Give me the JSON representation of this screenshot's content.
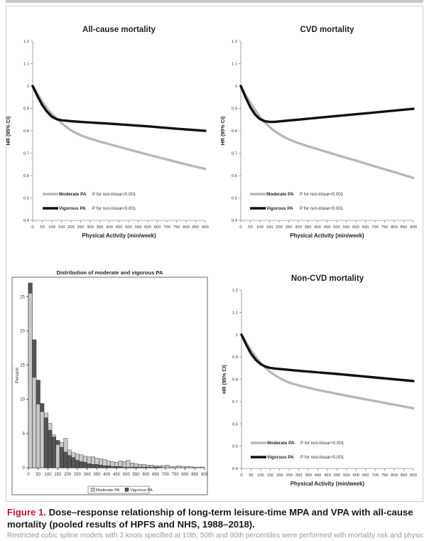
{
  "figure": {
    "caption_label": "Figure 1.",
    "caption_text": " Dose–response relationship of long-term leisure-time MPA and VPA with all-cause mortality (pooled results of HPFS and NHS, 1988–2018).",
    "footnote": "Restricted cubic spline models with 3 knots specified at 10th, 50th and 90th percentiles were performed with mortality risk and physical activity"
  },
  "colors": {
    "moderate": "#b8b8b8",
    "vigorous": "#111111",
    "hist_moderate": "#c9c9c9",
    "hist_vigorous": "#555555"
  },
  "chart_data": [
    {
      "id": "all-cause",
      "type": "line",
      "title": "All-cause mortality",
      "xlabel": "Physical Activity (min/week)",
      "ylabel": "HR (95% CI)",
      "xlim": [
        0,
        900
      ],
      "ylim": [
        0.4,
        1.2
      ],
      "xticks": [
        "0",
        "50",
        "100",
        "150",
        "200",
        "250",
        "300",
        "350",
        "400",
        "450",
        "500",
        "550",
        "600",
        "650",
        "700",
        "750",
        "800",
        "850",
        "900"
      ],
      "yticks": [
        "0.4",
        "0.5",
        "0.6",
        "0.7",
        "0.8",
        "0.9",
        "1",
        "1.1",
        "1.2"
      ],
      "legend": {
        "position": "bottom-left",
        "entries": [
          {
            "series": "Moderate PA",
            "note": "P for non-linear<0.001"
          },
          {
            "series": "Vigorous PA",
            "note": "P for non-linear<0.001"
          }
        ]
      },
      "series": [
        {
          "name": "Moderate PA",
          "x": [
            0,
            25,
            50,
            75,
            100,
            125,
            150,
            175,
            200,
            250,
            300,
            350,
            400,
            500,
            600,
            700,
            800,
            900
          ],
          "y": [
            1.0,
            0.965,
            0.93,
            0.9,
            0.875,
            0.855,
            0.835,
            0.818,
            0.802,
            0.78,
            0.765,
            0.752,
            0.74,
            0.717,
            0.694,
            0.672,
            0.65,
            0.63
          ]
        },
        {
          "name": "Vigorous PA",
          "x": [
            0,
            25,
            50,
            75,
            100,
            125,
            150,
            175,
            200,
            250,
            300,
            400,
            500,
            600,
            700,
            800,
            900
          ],
          "y": [
            1.0,
            0.955,
            0.915,
            0.885,
            0.863,
            0.852,
            0.847,
            0.845,
            0.843,
            0.84,
            0.837,
            0.832,
            0.826,
            0.82,
            0.813,
            0.806,
            0.8
          ]
        }
      ]
    },
    {
      "id": "cvd",
      "type": "line",
      "title": "CVD mortality",
      "xlabel": "Physical Activity (min/week)",
      "ylabel": "HR (95% CI)",
      "xlim": [
        0,
        900
      ],
      "ylim": [
        0.4,
        1.2
      ],
      "xticks": [
        "0",
        "50",
        "100",
        "150",
        "200",
        "250",
        "300",
        "350",
        "400",
        "450",
        "500",
        "550",
        "600",
        "650",
        "700",
        "750",
        "800",
        "850",
        "900"
      ],
      "yticks": [
        "0.4",
        "0.5",
        "0.6",
        "0.7",
        "0.8",
        "0.9",
        "1",
        "1.1",
        "1.2"
      ],
      "legend": {
        "position": "bottom-left",
        "entries": [
          {
            "series": "Moderate PA",
            "note": "P for non-linear<0.001"
          },
          {
            "series": "Vigorous PA",
            "note": "P for non-linear<0.001"
          }
        ]
      },
      "series": [
        {
          "name": "Moderate PA",
          "x": [
            0,
            25,
            50,
            75,
            100,
            125,
            150,
            175,
            200,
            250,
            300,
            350,
            400,
            500,
            600,
            700,
            800,
            900
          ],
          "y": [
            1.0,
            0.96,
            0.925,
            0.892,
            0.862,
            0.838,
            0.817,
            0.8,
            0.785,
            0.762,
            0.745,
            0.731,
            0.718,
            0.692,
            0.667,
            0.641,
            0.616,
            0.59
          ]
        },
        {
          "name": "Vigorous PA",
          "x": [
            0,
            25,
            50,
            75,
            100,
            125,
            150,
            175,
            200,
            250,
            300,
            400,
            500,
            600,
            700,
            800,
            900
          ],
          "y": [
            1.0,
            0.95,
            0.905,
            0.872,
            0.852,
            0.843,
            0.84,
            0.84,
            0.842,
            0.846,
            0.85,
            0.858,
            0.866,
            0.874,
            0.882,
            0.89,
            0.898
          ]
        }
      ]
    },
    {
      "id": "distribution",
      "type": "bar",
      "title": "Distribution of moderate and vigorous PA",
      "xlabel": "",
      "ylabel": "Percent",
      "xlim": [
        0,
        900
      ],
      "ylim": [
        0,
        27
      ],
      "xticks": [
        "0",
        "50",
        "100",
        "150",
        "200",
        "250",
        "300",
        "350",
        "400",
        "450",
        "500",
        "550",
        "600",
        "650",
        "700",
        "750",
        "800",
        "850",
        "900"
      ],
      "yticks": [
        "0",
        "5",
        "10",
        "15",
        "20",
        "25"
      ],
      "bin_width": 20,
      "legend": {
        "position": "bottom",
        "entries": [
          "Moderate PA",
          "Vigorous PA"
        ]
      },
      "series": [
        {
          "name": "Moderate PA",
          "values": [
            25.5,
            13.2,
            9.3,
            8.2,
            8.0,
            6.5,
            4.8,
            3.4,
            3.7,
            4.3,
            2.6,
            2.2,
            2.0,
            1.9,
            1.7,
            1.6,
            1.6,
            1.4,
            1.3,
            1.2,
            1.0,
            0.9,
            0.8,
            1.0,
            0.9,
            1.1,
            0.7,
            0.6,
            0.5,
            0.5,
            0.4,
            0.4,
            0.3,
            0.3,
            0.3,
            0.4,
            0.2,
            0.2,
            0.3,
            0.2,
            0.2,
            0.2,
            0.1,
            0.1,
            0.1
          ]
        },
        {
          "name": "Vigorous PA",
          "values": [
            27.0,
            18.7,
            12.8,
            9.4,
            7.3,
            5.5,
            4.5,
            4.0,
            3.0,
            2.3,
            1.8,
            1.5,
            1.1,
            0.9,
            0.8,
            0.6,
            0.5,
            0.5,
            0.4,
            0.3,
            0.3,
            0.2,
            0.2,
            0.2,
            0.1,
            0.1,
            0.1,
            0.1,
            0.1,
            0.1,
            0.1,
            0.1,
            0.1,
            0.1,
            0.0,
            0.0,
            0.0,
            0.0,
            0.0,
            0.0,
            0.0,
            0.0,
            0.0,
            0.0,
            0.0
          ]
        }
      ]
    },
    {
      "id": "non-cvd",
      "type": "line",
      "title": "Non-CVD mortality",
      "xlabel": "Physical Activity (min/week)",
      "ylabel": "HR (95% CI)",
      "xlim": [
        0,
        900
      ],
      "ylim": [
        0.4,
        1.2
      ],
      "xticks": [
        "0",
        "50",
        "100",
        "150",
        "200",
        "250",
        "300",
        "350",
        "400",
        "450",
        "500",
        "550",
        "600",
        "650",
        "700",
        "750",
        "800",
        "850",
        "900"
      ],
      "yticks": [
        "0.4",
        "0.5",
        "0.6",
        "0.7",
        "0.8",
        "0.9",
        "1",
        "1.1",
        "1.2"
      ],
      "legend": {
        "position": "bottom-left",
        "entries": [
          {
            "series": "Moderate PA",
            "note": "P for non-linear<0.001"
          },
          {
            "series": "Vigorous PA",
            "note": "P for non-linear<0.001"
          }
        ]
      },
      "series": [
        {
          "name": "Moderate PA",
          "x": [
            0,
            25,
            50,
            75,
            100,
            125,
            150,
            175,
            200,
            250,
            300,
            350,
            400,
            500,
            600,
            700,
            800,
            900
          ],
          "y": [
            1.0,
            0.965,
            0.93,
            0.9,
            0.873,
            0.852,
            0.833,
            0.818,
            0.805,
            0.785,
            0.772,
            0.762,
            0.752,
            0.735,
            0.718,
            0.702,
            0.686,
            0.67
          ]
        },
        {
          "name": "Vigorous PA",
          "x": [
            0,
            25,
            50,
            75,
            100,
            125,
            150,
            175,
            200,
            250,
            300,
            400,
            500,
            600,
            700,
            800,
            900
          ],
          "y": [
            1.0,
            0.955,
            0.915,
            0.887,
            0.868,
            0.857,
            0.851,
            0.848,
            0.846,
            0.842,
            0.838,
            0.831,
            0.824,
            0.816,
            0.808,
            0.8,
            0.792
          ]
        }
      ]
    }
  ]
}
